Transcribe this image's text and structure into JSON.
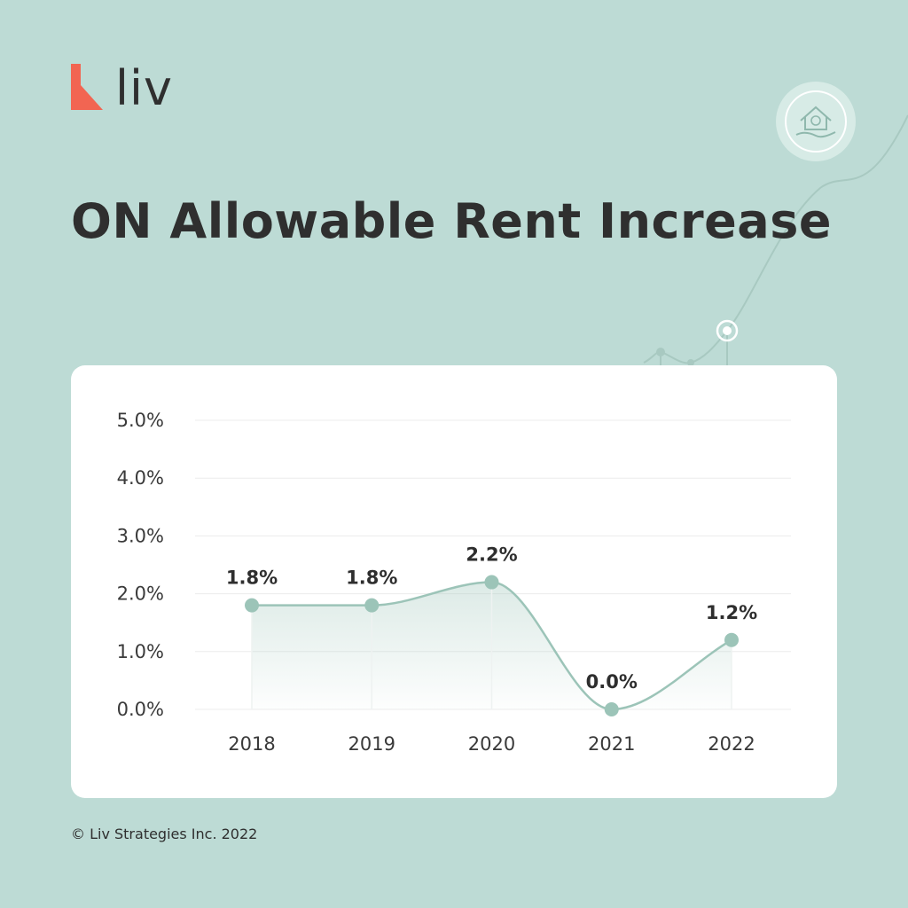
{
  "brand": {
    "name": "liv",
    "logo_color": "#f26552"
  },
  "title": "ON Allowable Rent Increase",
  "decor_icon": "house-in-hand-icon",
  "copyright": "© Liv Strategies Inc. 2022",
  "colors": {
    "background": "#bddbd5",
    "line": "#9cc4b8",
    "card": "#ffffff"
  },
  "chart_data": {
    "type": "area",
    "title": "ON Allowable Rent Increase",
    "x": [
      "2018",
      "2019",
      "2020",
      "2021",
      "2022"
    ],
    "series": [
      {
        "values": [
          1.8,
          1.8,
          2.2,
          0.0,
          1.2
        ],
        "labels": [
          "1.8%",
          "1.8%",
          "2.2%",
          "0.0%",
          "1.2%"
        ]
      }
    ],
    "ylim": [
      0,
      5
    ],
    "y_ticks": [
      "0.0%",
      "1.0%",
      "2.0%",
      "3.0%",
      "4.0%",
      "5.0%"
    ],
    "xlabel": "",
    "ylabel": "",
    "grid": true,
    "smooth": true
  }
}
